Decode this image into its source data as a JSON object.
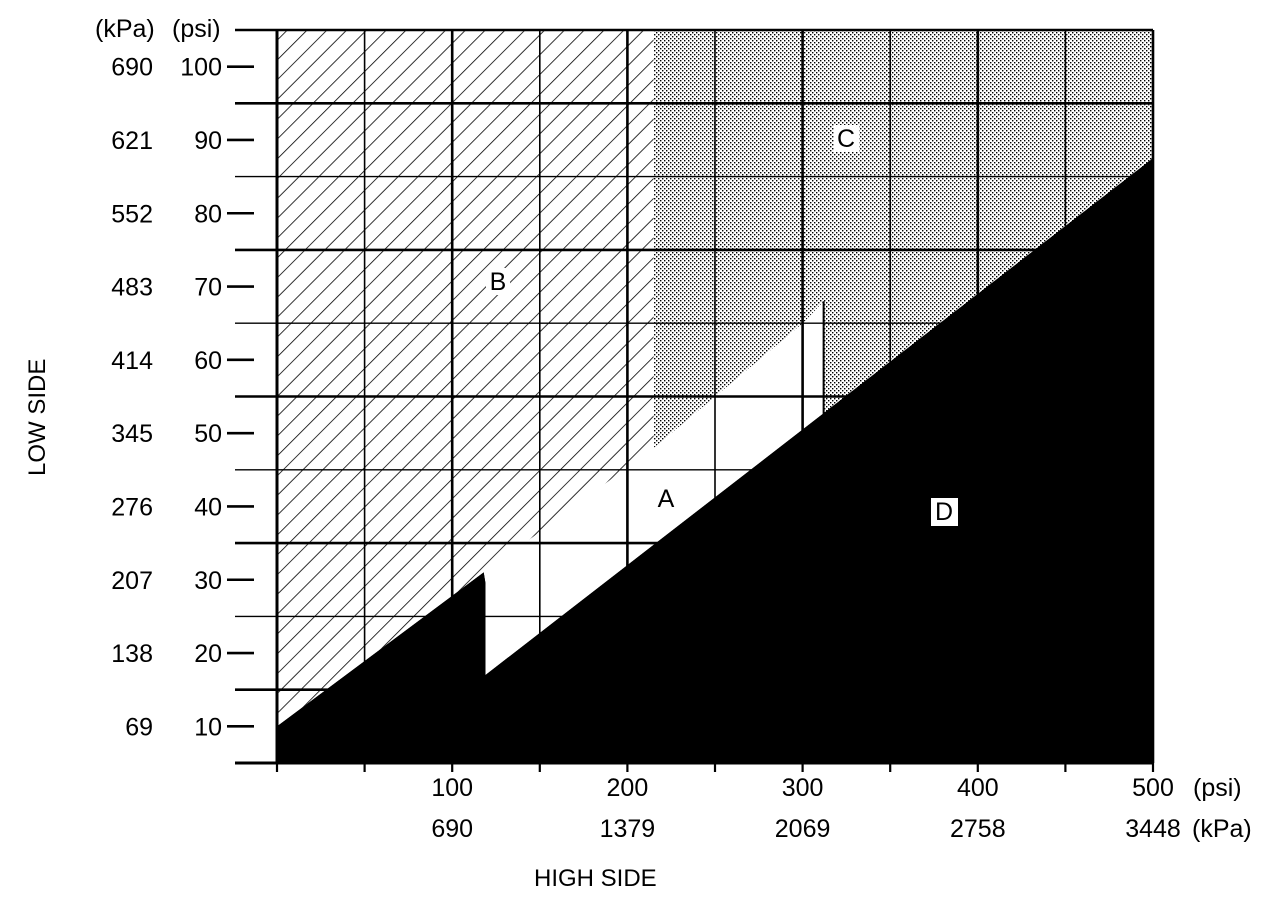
{
  "chart_data": {
    "type": "area",
    "xlabel": "HIGH SIDE",
    "ylabel": "LOW SIDE",
    "x_unit_labels": [
      "(psi)",
      "(kPa)"
    ],
    "y_unit_labels": [
      "(kPa)",
      "(psi)"
    ],
    "xlim": [
      0,
      500
    ],
    "ylim": [
      5,
      105
    ],
    "x_ticks_psi": [
      "100",
      "200",
      "300",
      "400",
      "500"
    ],
    "x_ticks_kpa": [
      "690",
      "1379",
      "2069",
      "2758",
      "3448"
    ],
    "y_ticks_psi": [
      "100",
      "90",
      "80",
      "70",
      "60",
      "50",
      "40",
      "30",
      "20",
      "10"
    ],
    "y_ticks_kpa": [
      "690",
      "621",
      "552",
      "483",
      "414",
      "345",
      "276",
      "207",
      "138",
      "69"
    ],
    "x_minor_ticks": [
      50,
      150,
      250,
      350,
      450
    ],
    "grid": true,
    "regions": [
      {
        "name": "A",
        "fill": "white",
        "polygon": [
          [
            119,
            29.5
          ],
          [
            119,
            17
          ],
          [
            309,
            51
          ],
          [
            311,
            52.5
          ],
          [
            312,
            68
          ],
          [
            300,
            65
          ],
          [
            215,
            48
          ],
          [
            147,
            36
          ],
          [
            118,
            31
          ]
        ]
      },
      {
        "name": "B",
        "fill": "diagonal-hatch",
        "polygon": [
          [
            0,
            105
          ],
          [
            215,
            105
          ],
          [
            215,
            48
          ],
          [
            147,
            36
          ],
          [
            118,
            31
          ],
          [
            0,
            10
          ]
        ]
      },
      {
        "name": "C",
        "fill": "stipple",
        "polygon": [
          [
            215,
            105
          ],
          [
            500,
            105
          ],
          [
            500,
            87.5
          ],
          [
            312,
            52.5
          ],
          [
            312,
            68
          ],
          [
            300,
            65
          ],
          [
            215,
            48
          ]
        ]
      },
      {
        "name": "D",
        "fill": "black",
        "polygon": [
          [
            0,
            10
          ],
          [
            118,
            31
          ],
          [
            119,
            29.5
          ],
          [
            119,
            17
          ],
          [
            500,
            87.5
          ],
          [
            500,
            5
          ],
          [
            0,
            5
          ]
        ]
      }
    ]
  },
  "text": {
    "y_unit_kpa": "(kPa)",
    "y_unit_psi": "(psi)",
    "x_unit_psi": "(psi)",
    "x_unit_kpa": "(kPa)",
    "xlabel": "HIGH SIDE",
    "ylabel": "LOW SIDE",
    "region_a": "A",
    "region_b": "B",
    "region_c": "C",
    "region_d": "D"
  },
  "colors": {
    "ink": "#000000",
    "paper": "#ffffff",
    "stipple": "#cfcfcf"
  }
}
